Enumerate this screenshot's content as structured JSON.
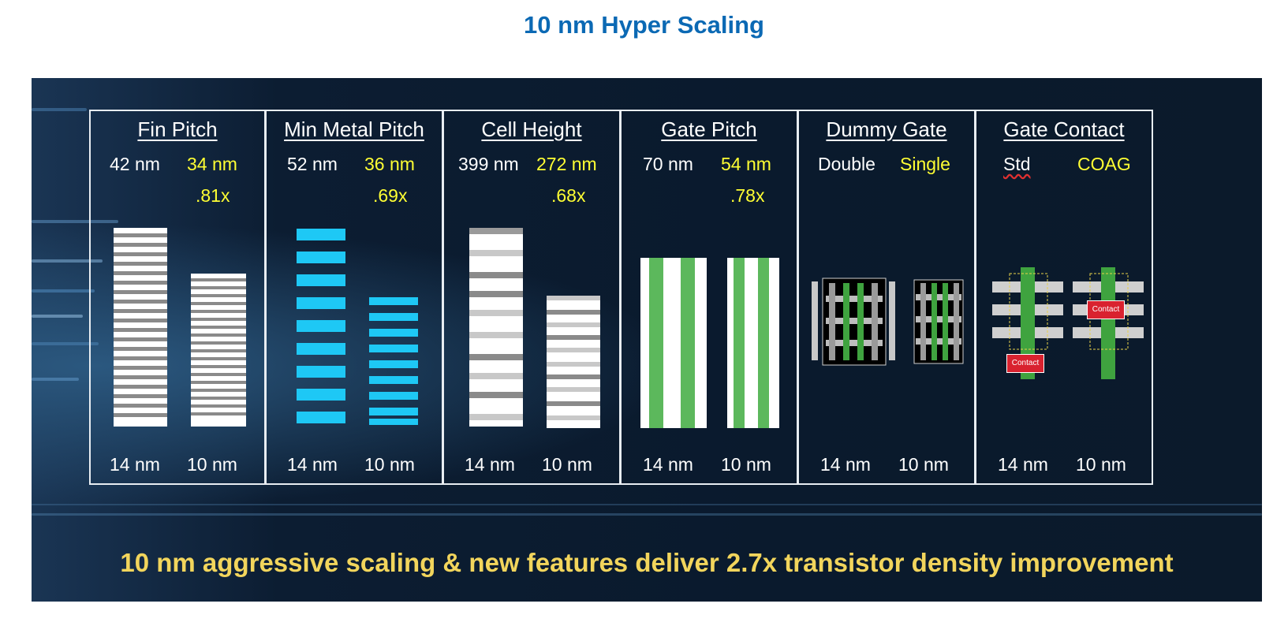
{
  "title": "10 nm Hyper Scaling",
  "panels": [
    {
      "title": "Fin Pitch",
      "old_value": "42 nm",
      "new_value": "34 nm",
      "ratio": ".81x",
      "old_node": "14 nm",
      "new_node": "10 nm"
    },
    {
      "title": "Min Metal Pitch",
      "old_value": "52 nm",
      "new_value": "36 nm",
      "ratio": ".69x",
      "old_node": "14 nm",
      "new_node": "10 nm"
    },
    {
      "title": "Cell Height",
      "old_value": "399 nm",
      "new_value": "272 nm",
      "ratio": ".68x",
      "old_node": "14 nm",
      "new_node": "10 nm"
    },
    {
      "title": "Gate Pitch",
      "old_value": "70 nm",
      "new_value": "54 nm",
      "ratio": ".78x",
      "old_node": "14 nm",
      "new_node": "10 nm"
    },
    {
      "title": "Dummy Gate",
      "old_value": "Double",
      "new_value": "Single",
      "old_node": "14 nm",
      "new_node": "10 nm"
    },
    {
      "title": "Gate Contact",
      "old_value": "Std",
      "new_value": "COAG",
      "old_node": "14 nm",
      "new_node": "10 nm",
      "contact_label": "Contact"
    }
  ],
  "footer": "10 nm aggressive scaling & new features deliver 2.7x transistor density improvement",
  "colors": {
    "title_blue": "#0b69b4",
    "highlight_yellow": "#ffff33",
    "footer_yellow": "#f2d55c",
    "metal_cyan": "#1ec8f5",
    "gate_green": "#5cb85c",
    "contact_red": "#d9222f"
  }
}
